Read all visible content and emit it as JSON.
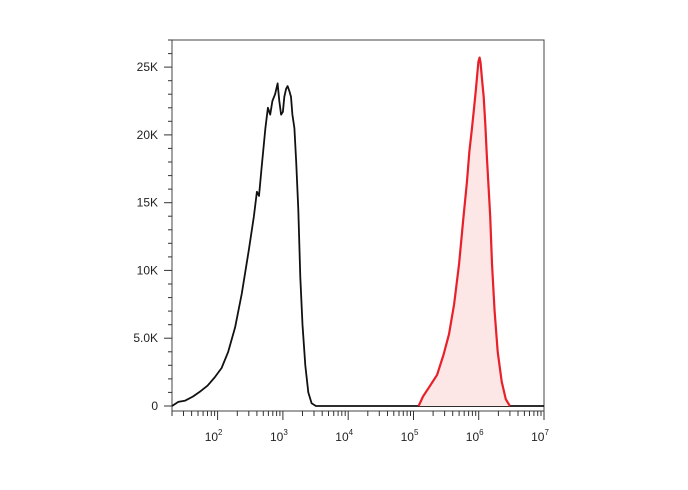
{
  "chart_data": {
    "type": "area",
    "x_scale": "log",
    "xlim": [
      20,
      10000000
    ],
    "ylim": [
      0,
      27000
    ],
    "grid": false,
    "title": "",
    "xlabel": "",
    "ylabel": "",
    "y_ticks": [
      {
        "value": 0,
        "label": "0"
      },
      {
        "value": 5000,
        "label": "5.0K"
      },
      {
        "value": 10000,
        "label": "10K"
      },
      {
        "value": 15000,
        "label": "15K"
      },
      {
        "value": 20000,
        "label": "20K"
      },
      {
        "value": 25000,
        "label": "25K"
      }
    ],
    "x_ticks": [
      {
        "value": 100,
        "base": "10",
        "exp": "2"
      },
      {
        "value": 1000,
        "base": "10",
        "exp": "3"
      },
      {
        "value": 10000,
        "base": "10",
        "exp": "4"
      },
      {
        "value": 100000,
        "base": "10",
        "exp": "5"
      },
      {
        "value": 1000000,
        "base": "10",
        "exp": "6"
      },
      {
        "value": 10000000,
        "base": "10",
        "exp": "7"
      }
    ],
    "series": [
      {
        "color": "#111111",
        "fill": "none",
        "points": [
          [
            20,
            0
          ],
          [
            25,
            300
          ],
          [
            32,
            400
          ],
          [
            42,
            700
          ],
          [
            55,
            1100
          ],
          [
            70,
            1500
          ],
          [
            90,
            2100
          ],
          [
            115,
            2800
          ],
          [
            145,
            4000
          ],
          [
            185,
            5800
          ],
          [
            235,
            8300
          ],
          [
            300,
            11500
          ],
          [
            360,
            14000
          ],
          [
            400,
            15800
          ],
          [
            430,
            15500
          ],
          [
            470,
            17500
          ],
          [
            540,
            20500
          ],
          [
            590,
            22000
          ],
          [
            640,
            21500
          ],
          [
            690,
            22500
          ],
          [
            760,
            23000
          ],
          [
            830,
            23800
          ],
          [
            880,
            22500
          ],
          [
            940,
            21500
          ],
          [
            1000,
            21700
          ],
          [
            1050,
            22800
          ],
          [
            1120,
            23400
          ],
          [
            1180,
            23600
          ],
          [
            1260,
            23200
          ],
          [
            1330,
            22800
          ],
          [
            1400,
            21500
          ],
          [
            1500,
            20500
          ],
          [
            1600,
            18000
          ],
          [
            1720,
            14500
          ],
          [
            1850,
            9500
          ],
          [
            2000,
            6000
          ],
          [
            2200,
            3000
          ],
          [
            2450,
            1000
          ],
          [
            2750,
            200
          ],
          [
            3200,
            0
          ],
          [
            1000000000,
            0
          ]
        ]
      },
      {
        "color": "#e8202a",
        "fill": "#fde6e6",
        "points": [
          [
            120000,
            0
          ],
          [
            140000,
            700
          ],
          [
            180000,
            1500
          ],
          [
            230000,
            2300
          ],
          [
            290000,
            3800
          ],
          [
            350000,
            5300
          ],
          [
            420000,
            7500
          ],
          [
            500000,
            10500
          ],
          [
            580000,
            13800
          ],
          [
            660000,
            16500
          ],
          [
            720000,
            18800
          ],
          [
            780000,
            20300
          ],
          [
            840000,
            21800
          ],
          [
            900000,
            23200
          ],
          [
            950000,
            24500
          ],
          [
            990000,
            25400
          ],
          [
            1030000,
            25700
          ],
          [
            1070000,
            25300
          ],
          [
            1120000,
            24200
          ],
          [
            1190000,
            22800
          ],
          [
            1260000,
            20800
          ],
          [
            1330000,
            18500
          ],
          [
            1400000,
            16500
          ],
          [
            1500000,
            14000
          ],
          [
            1600000,
            10500
          ],
          [
            1750000,
            7000
          ],
          [
            1950000,
            4000
          ],
          [
            2250000,
            1800
          ],
          [
            2600000,
            500
          ],
          [
            3000000,
            0
          ]
        ]
      }
    ]
  }
}
